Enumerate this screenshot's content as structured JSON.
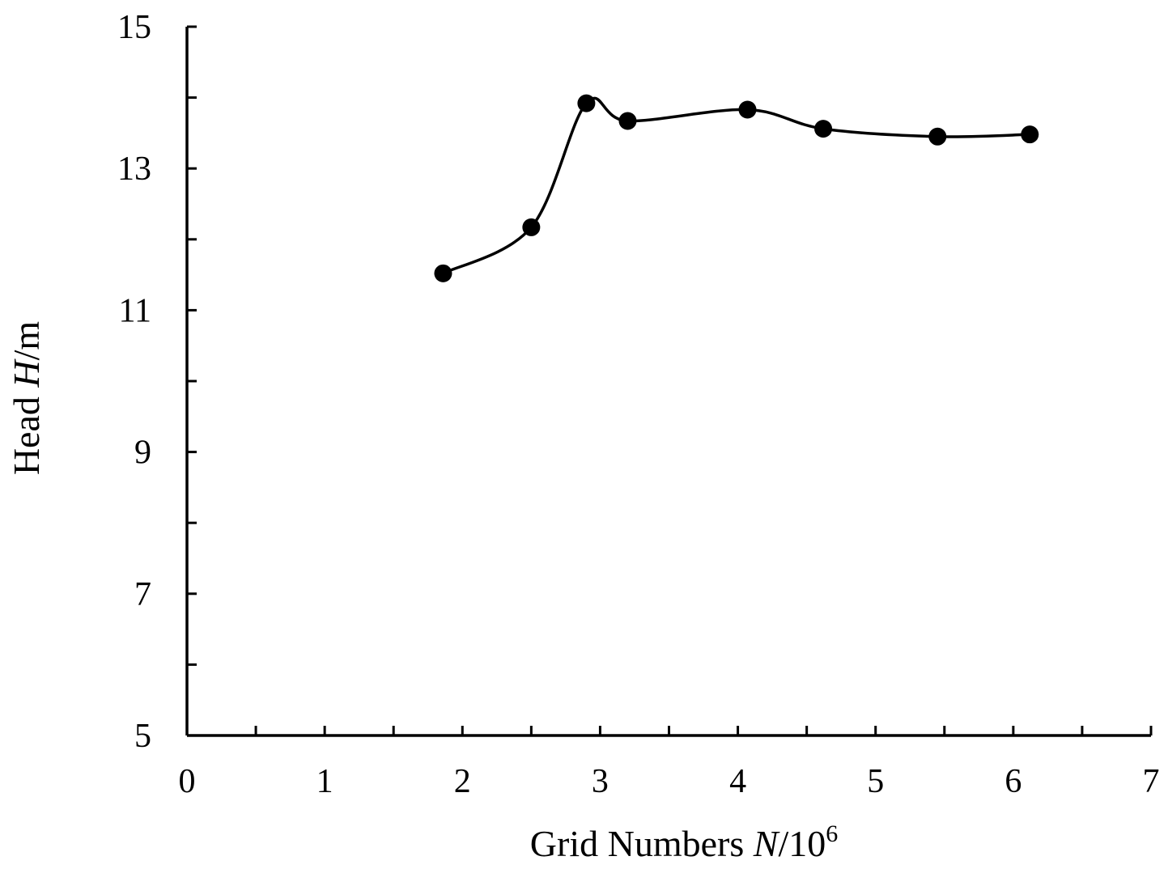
{
  "chart_data": {
    "type": "line",
    "title": "",
    "xlabel": {
      "prefix": "Grid Numbers ",
      "var": "N",
      "unit": "/10",
      "sup": "6"
    },
    "ylabel": {
      "prefix": "Head ",
      "var": "H",
      "unit": "/m"
    },
    "xlim": [
      0,
      7
    ],
    "ylim": [
      5,
      15
    ],
    "x_ticks": [
      0,
      1,
      2,
      3,
      4,
      5,
      6,
      7
    ],
    "x_minor_step": 0.5,
    "y_ticks": [
      5,
      7,
      9,
      11,
      13,
      15
    ],
    "y_minor_step": 1,
    "grid": false,
    "legend": "none",
    "line_color": "#000000",
    "smooth": true,
    "series": [
      {
        "x": [
          1.86,
          2.5,
          2.9,
          3.2,
          4.07,
          4.62,
          5.45,
          6.12
        ],
        "y": [
          11.52,
          12.17,
          13.92,
          13.67,
          13.83,
          13.56,
          13.45,
          13.48
        ]
      }
    ]
  }
}
